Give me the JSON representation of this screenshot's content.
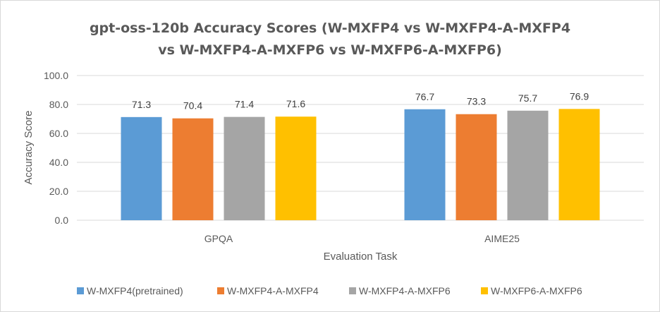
{
  "chart_data": {
    "type": "bar",
    "title_line1": "gpt-oss-120b Accuracy Scores (W-MXFP4 vs W-MXFP4-A-MXFP4",
    "title_line2": "vs W-MXFP4-A-MXFP6 vs W-MXFP6-A-MXFP6)",
    "xlabel": "Evaluation Task",
    "ylabel": "Accuracy Score",
    "ylim": [
      0,
      100
    ],
    "yticks": [
      "0.0",
      "20.0",
      "40.0",
      "60.0",
      "80.0",
      "100.0"
    ],
    "ytick_values": [
      0,
      20,
      40,
      60,
      80,
      100
    ],
    "categories": [
      "GPQA",
      "AIME25"
    ],
    "series": [
      {
        "name": "W-MXFP4(pretrained)",
        "color": "#5b9bd5",
        "values": [
          71.3,
          76.7
        ],
        "labels": [
          "71.3",
          "76.7"
        ]
      },
      {
        "name": "W-MXFP4-A-MXFP4",
        "color": "#ed7d31",
        "values": [
          70.4,
          73.3
        ],
        "labels": [
          "70.4",
          "73.3"
        ]
      },
      {
        "name": "W-MXFP4-A-MXFP6",
        "color": "#a5a5a5",
        "values": [
          71.4,
          75.7
        ],
        "labels": [
          "71.4",
          "75.7"
        ]
      },
      {
        "name": "W-MXFP6-A-MXFP6",
        "color": "#ffc000",
        "values": [
          71.6,
          76.9
        ],
        "labels": [
          "71.6",
          "76.9"
        ]
      }
    ],
    "legend_position": "bottom",
    "gridlines": true,
    "gridline_color": "#d9d9d9"
  }
}
